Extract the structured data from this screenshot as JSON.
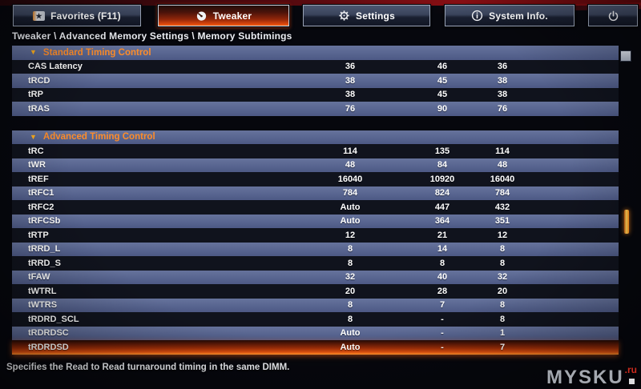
{
  "nav": {
    "items": [
      {
        "label": "Favorites (F11)",
        "icon": "star-icon",
        "active": false
      },
      {
        "label": "Tweaker",
        "icon": "gauge-icon",
        "active": true
      },
      {
        "label": "Settings",
        "icon": "gear-icon",
        "active": false
      },
      {
        "label": "System Info.",
        "icon": "info-icon",
        "active": false
      }
    ],
    "power_icon": "power-icon",
    "favorites_star_glyph": "★"
  },
  "breadcrumb": "Tweaker \\ Advanced Memory Settings \\ Memory Subtimings",
  "table": {
    "sections": [
      {
        "title": "Standard Timing Control",
        "collapse_glyph": "▼",
        "rows": [
          {
            "label": "CAS Latency",
            "values": [
              "36",
              "46",
              "36"
            ]
          },
          {
            "label": "tRCD",
            "values": [
              "38",
              "45",
              "38"
            ]
          },
          {
            "label": "tRP",
            "values": [
              "38",
              "45",
              "38"
            ]
          },
          {
            "label": "tRAS",
            "values": [
              "76",
              "90",
              "76"
            ]
          }
        ]
      },
      {
        "title": "Advanced Timing Control",
        "collapse_glyph": "▼",
        "rows": [
          {
            "label": "tRC",
            "values": [
              "114",
              "135",
              "114"
            ]
          },
          {
            "label": "tWR",
            "values": [
              "48",
              "84",
              "48"
            ]
          },
          {
            "label": "tREF",
            "values": [
              "16040",
              "10920",
              "16040"
            ]
          },
          {
            "label": "tRFC1",
            "values": [
              "784",
              "824",
              "784"
            ]
          },
          {
            "label": "tRFC2",
            "values": [
              "Auto",
              "447",
              "432"
            ]
          },
          {
            "label": "tRFCSb",
            "values": [
              "Auto",
              "364",
              "351"
            ]
          },
          {
            "label": "tRTP",
            "values": [
              "12",
              "21",
              "12"
            ]
          },
          {
            "label": "tRRD_L",
            "values": [
              "8",
              "14",
              "8"
            ]
          },
          {
            "label": "tRRD_S",
            "values": [
              "8",
              "8",
              "8"
            ]
          },
          {
            "label": "tFAW",
            "values": [
              "32",
              "40",
              "32"
            ]
          },
          {
            "label": "tWTRL",
            "values": [
              "20",
              "28",
              "20"
            ]
          },
          {
            "label": "tWTRS",
            "values": [
              "8",
              "7",
              "8"
            ]
          },
          {
            "label": "tRDRD_SCL",
            "values": [
              "8",
              "-",
              "8"
            ]
          },
          {
            "label": "tRDRDSC",
            "values": [
              "Auto",
              "-",
              "1"
            ]
          },
          {
            "label": "tRDRDSD",
            "values": [
              "Auto",
              "-",
              "7"
            ],
            "selected": true
          }
        ]
      }
    ]
  },
  "help_text": "Specifies the Read to Read turnaround timing in the same DIMM.",
  "watermark": {
    "text": "MYSKU",
    "suffix": ".ru"
  },
  "colors": {
    "accent_orange": "#ff7b1e",
    "section_title_orange": "#ff8d2a",
    "row_light_blue": "#5a6590",
    "selected_gradient_bottom": "#ffa83f",
    "watermark_red": "#e03020"
  }
}
